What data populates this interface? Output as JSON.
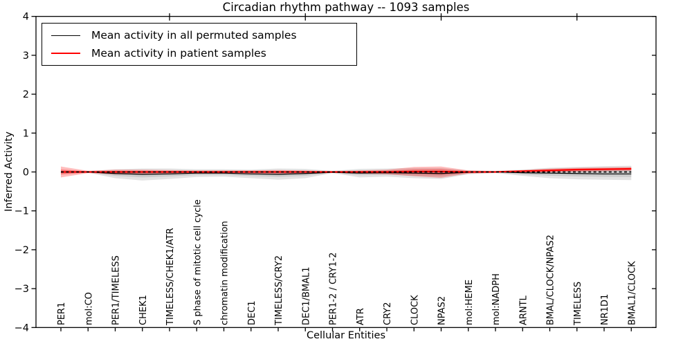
{
  "chart_data": {
    "type": "line",
    "title": "Circadian rhythm pathway -- 1093 samples",
    "xlabel": "Cellular Entities",
    "ylabel": "Inferred Activity",
    "ylim": [
      -4,
      4
    ],
    "ytick_labels": [
      "4",
      "3",
      "2",
      "1",
      "0",
      "−1",
      "−2",
      "−3",
      "−4"
    ],
    "grid": false,
    "legend_position": "upper left",
    "categories": [
      "PER1",
      "mol:CO",
      "PER1/TIMELESS",
      "CHEK1",
      "TIMELESS/CHEK1/ATR",
      "S phase of mitotic cell cycle",
      "chromatin modification",
      "DEC1",
      "TIMELESS/CRY2",
      "DEC1/BMAL1",
      "PER1-2 / CRY1-2",
      "ATR",
      "CRY2",
      "CLOCK",
      "NPAS2",
      "mol:HEME",
      "mol:NADPH",
      "ARNTL",
      "BMAL/CLOCK/NPAS2",
      "TIMELESS",
      "NR1D1",
      "BMAL1/CLOCK"
    ],
    "series": [
      {
        "name": "Mean activity in all permuted samples",
        "color": "#000000",
        "band_color": "rgba(0,0,0,0.11)",
        "values": [
          0.0,
          0.0,
          -0.04,
          -0.06,
          -0.05,
          -0.03,
          -0.03,
          -0.05,
          -0.06,
          -0.04,
          -0.01,
          -0.03,
          -0.02,
          -0.03,
          -0.04,
          -0.01,
          0.0,
          -0.02,
          -0.03,
          -0.04,
          -0.05,
          -0.05
        ],
        "band_hi": [
          0.05,
          0.02,
          0.07,
          0.09,
          0.09,
          0.07,
          0.07,
          0.06,
          0.09,
          0.08,
          0.03,
          0.08,
          0.09,
          0.1,
          0.1,
          0.04,
          0.03,
          0.06,
          0.11,
          0.13,
          0.15,
          0.16
        ],
        "band_lo": [
          -0.05,
          -0.02,
          -0.16,
          -0.22,
          -0.18,
          -0.13,
          -0.12,
          -0.16,
          -0.2,
          -0.16,
          -0.03,
          -0.14,
          -0.12,
          -0.16,
          -0.18,
          -0.06,
          -0.03,
          -0.1,
          -0.16,
          -0.19,
          -0.2,
          -0.21
        ]
      },
      {
        "name": "Mean activity in patient samples",
        "color": "#ff0000",
        "band_color": "rgba(255,0,0,0.26)",
        "values": [
          0.0,
          0.0,
          0.0,
          0.0,
          0.0,
          0.0,
          0.0,
          0.0,
          0.0,
          0.0,
          0.0,
          0.0,
          0.0,
          0.01,
          0.01,
          0.0,
          0.0,
          0.02,
          0.04,
          0.06,
          0.07,
          0.08
        ],
        "band_hi": [
          0.14,
          0.03,
          0.06,
          0.06,
          0.05,
          0.04,
          0.04,
          0.04,
          0.05,
          0.04,
          0.02,
          0.04,
          0.06,
          0.13,
          0.14,
          0.04,
          0.02,
          0.05,
          0.09,
          0.11,
          0.12,
          0.13
        ],
        "band_lo": [
          -0.14,
          -0.03,
          -0.06,
          -0.06,
          -0.05,
          -0.04,
          -0.04,
          -0.04,
          -0.05,
          -0.04,
          -0.02,
          -0.04,
          -0.06,
          -0.11,
          -0.15,
          -0.04,
          -0.02,
          -0.01,
          -0.01,
          0.01,
          0.02,
          0.03
        ]
      }
    ],
    "zero_line": {
      "style": "dashed",
      "color": "#000000"
    },
    "top_tick_indices": [
      4,
      9,
      14,
      19
    ]
  },
  "legend": {
    "items": [
      {
        "label": "Mean activity in all permuted samples",
        "color": "#000000"
      },
      {
        "label": "Mean activity in patient samples",
        "color": "#ff0000"
      }
    ]
  }
}
